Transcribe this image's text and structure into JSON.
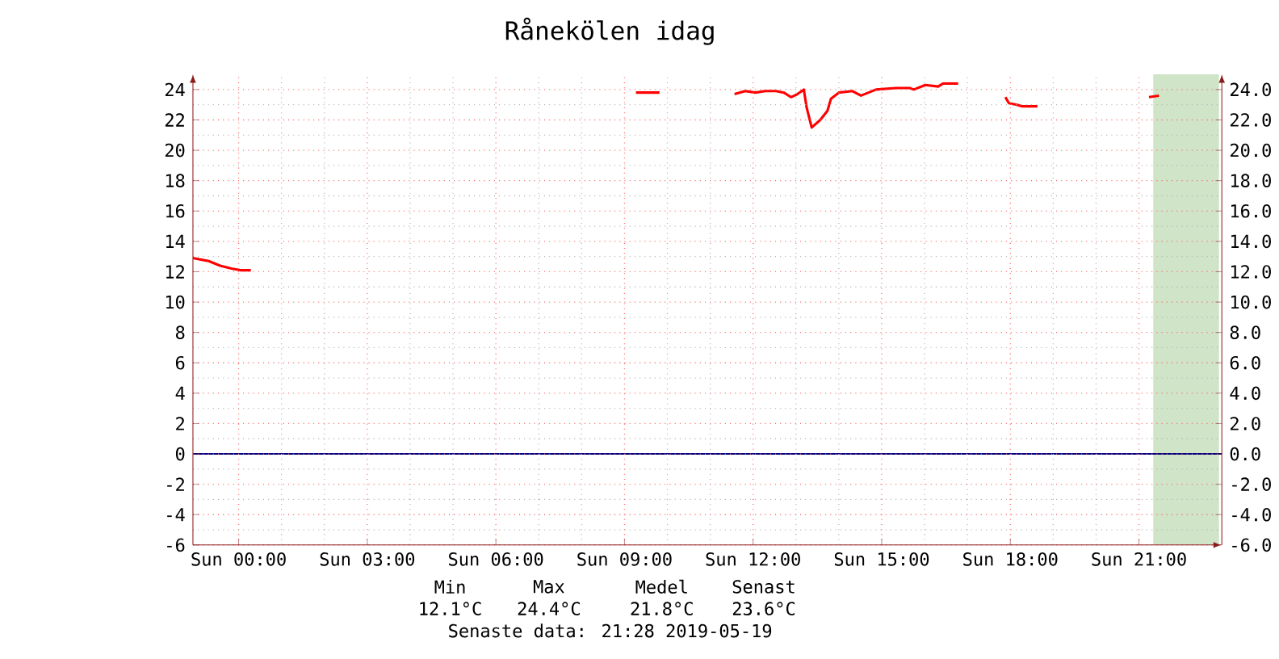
{
  "chart_data": {
    "type": "line",
    "title": "Rånekölen idag",
    "x": [
      "2019-05-18T22:56",
      "2019-05-18T23:18",
      "2019-05-18T23:34",
      "2019-05-18T23:51",
      "2019-05-19T00:02",
      "2019-05-19T00:17",
      "2019-05-19T01:00",
      "2019-05-19T09:16",
      "2019-05-19T09:49",
      "2019-05-19T10:30",
      "2019-05-19T11:34",
      "2019-05-19T11:49",
      "2019-05-19T12:03",
      "2019-05-19T12:17",
      "2019-05-19T12:32",
      "2019-05-19T12:43",
      "2019-05-19T12:53",
      "2019-05-19T13:02",
      "2019-05-19T13:11",
      "2019-05-19T13:15",
      "2019-05-19T13:22",
      "2019-05-19T13:34",
      "2019-05-19T13:44",
      "2019-05-19T13:49",
      "2019-05-19T14:00",
      "2019-05-19T14:19",
      "2019-05-19T14:31",
      "2019-05-19T14:52",
      "2019-05-19T15:20",
      "2019-05-19T15:39",
      "2019-05-19T15:45",
      "2019-05-19T16:01",
      "2019-05-19T16:19",
      "2019-05-19T16:26",
      "2019-05-19T16:47",
      "2019-05-19T17:18",
      "2019-05-19T17:53",
      "2019-05-19T17:58",
      "2019-05-19T18:09",
      "2019-05-19T18:16",
      "2019-05-19T18:38",
      "2019-05-19T20:00",
      "2019-05-19T21:14",
      "2019-05-19T21:28"
    ],
    "series": [
      {
        "color": "#ff0000",
        "values": [
          12.9,
          12.7,
          12.4,
          12.2,
          12.1,
          12.1,
          null,
          23.8,
          23.8,
          null,
          23.7,
          23.9,
          23.8,
          23.9,
          23.9,
          23.8,
          23.5,
          23.7,
          24.0,
          22.8,
          21.5,
          22.0,
          22.6,
          23.4,
          23.8,
          23.9,
          23.6,
          24.0,
          24.1,
          24.1,
          24.0,
          24.3,
          24.2,
          24.4,
          24.4,
          null,
          23.5,
          23.1,
          23.0,
          22.9,
          22.9,
          null,
          23.5,
          23.6
        ]
      }
    ],
    "xlim": [
      "2019-05-18T22:56",
      "2019-05-19T22:56"
    ],
    "xticks": [
      {
        "value": "2019-05-19T00:00",
        "label": "Sun 00:00"
      },
      {
        "value": "2019-05-19T03:00",
        "label": "Sun 03:00"
      },
      {
        "value": "2019-05-19T06:00",
        "label": "Sun 06:00"
      },
      {
        "value": "2019-05-19T09:00",
        "label": "Sun 09:00"
      },
      {
        "value": "2019-05-19T12:00",
        "label": "Sun 12:00"
      },
      {
        "value": "2019-05-19T15:00",
        "label": "Sun 15:00"
      },
      {
        "value": "2019-05-19T18:00",
        "label": "Sun 18:00"
      },
      {
        "value": "2019-05-19T21:00",
        "label": "Sun 21:00"
      }
    ],
    "ylim": [
      -6,
      25
    ],
    "yticks": [
      -6,
      -4,
      -2,
      0,
      2,
      4,
      6,
      8,
      10,
      12,
      14,
      16,
      18,
      20,
      22,
      24
    ],
    "y2lim": [
      -6,
      25
    ],
    "y2ticks": [
      {
        "value": -6,
        "label": "-6.0"
      },
      {
        "value": -4,
        "label": "-4.0"
      },
      {
        "value": -2,
        "label": "-2.0"
      },
      {
        "value": 0,
        "label": "0.0"
      },
      {
        "value": 2,
        "label": "2.0"
      },
      {
        "value": 4,
        "label": "4.0"
      },
      {
        "value": 6,
        "label": "6.0"
      },
      {
        "value": 8,
        "label": "8.0"
      },
      {
        "value": 10,
        "label": "10.0"
      },
      {
        "value": 12,
        "label": "12.0"
      },
      {
        "value": 14,
        "label": "14.0"
      },
      {
        "value": 16,
        "label": "16.0"
      },
      {
        "value": 18,
        "label": "18.0"
      },
      {
        "value": 20,
        "label": "20.0"
      },
      {
        "value": 22,
        "label": "22.0"
      },
      {
        "value": 24,
        "label": "24.0"
      }
    ],
    "ref_lines": [
      {
        "axis": "y",
        "value": 0,
        "color": "#000080"
      }
    ],
    "bands": [
      {
        "axis": "x",
        "from": "2019-05-19T21:20",
        "to": "2019-05-19T22:52",
        "color": "#d0e4c8"
      }
    ],
    "grid": true,
    "line_style": "solid",
    "marker": "none",
    "annotations": [
      "Min",
      "Max",
      "Medel",
      "Senast",
      "12.1°C",
      "24.4°C",
      "21.8°C",
      "23.6°C",
      "Senaste data: 21:28 2019-05-19"
    ]
  }
}
